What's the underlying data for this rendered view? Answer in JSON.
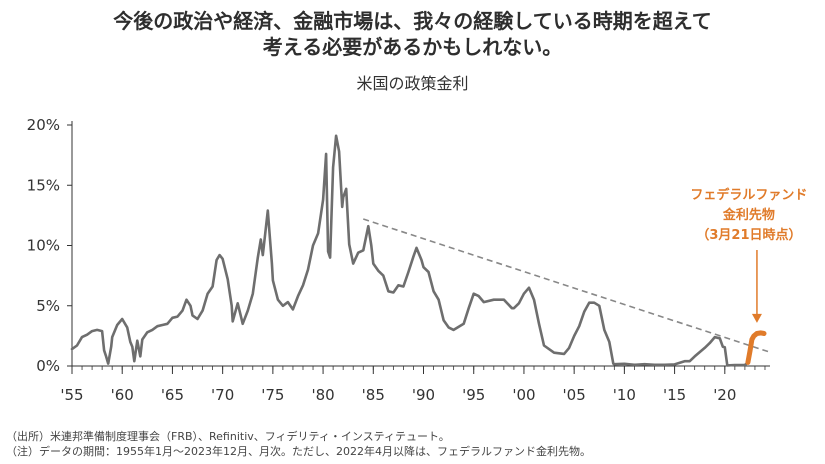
{
  "headline": {
    "line1": "今後の政治や経済、金融市場は、我々の経験している時期を超えて",
    "line2": "考える必要があるかもしれない。"
  },
  "colors": {
    "policy_rate": "#6e6e6e",
    "futures": "#e07b2a",
    "trend": "#888888",
    "axis": "#333333"
  },
  "chart_data": {
    "type": "line",
    "title": "米国の政策金利",
    "ylim": [
      0,
      20
    ],
    "yticks": [
      0,
      5,
      10,
      15,
      20
    ],
    "ytick_labels": [
      "0%",
      "5%",
      "10%",
      "15%",
      "20%"
    ],
    "xlim": [
      1955,
      2024.5
    ],
    "xticks": [
      1955,
      1960,
      1965,
      1970,
      1975,
      1980,
      1985,
      1990,
      1995,
      2000,
      2005,
      2010,
      2015,
      2020
    ],
    "xtick_labels": [
      "'55",
      "'60",
      "'65",
      "'70",
      "'75",
      "'80",
      "'85",
      "'90",
      "'95",
      "'00",
      "'05",
      "'10",
      "'15",
      "'20"
    ],
    "series": [
      {
        "points": [
          [
            1955,
            1.4
          ],
          [
            1955.5,
            1.7
          ],
          [
            1956,
            2.4
          ],
          [
            1956.5,
            2.6
          ],
          [
            1957,
            2.9
          ],
          [
            1957.5,
            3.0
          ],
          [
            1958,
            2.9
          ],
          [
            1958.2,
            1.3
          ],
          [
            1958.4,
            0.8
          ],
          [
            1958.6,
            0.2
          ],
          [
            1958.9,
            1.6
          ],
          [
            1959,
            2.4
          ],
          [
            1959.5,
            3.4
          ],
          [
            1960,
            3.9
          ],
          [
            1960.5,
            3.2
          ],
          [
            1960.8,
            2.0
          ],
          [
            1961,
            1.6
          ],
          [
            1961.2,
            0.4
          ],
          [
            1961.5,
            2.1
          ],
          [
            1961.8,
            0.8
          ],
          [
            1962,
            2.2
          ],
          [
            1962.5,
            2.8
          ],
          [
            1963,
            3.0
          ],
          [
            1963.5,
            3.3
          ],
          [
            1964,
            3.4
          ],
          [
            1964.5,
            3.5
          ],
          [
            1965,
            4.0
          ],
          [
            1965.5,
            4.1
          ],
          [
            1966,
            4.6
          ],
          [
            1966.4,
            5.5
          ],
          [
            1966.8,
            5.0
          ],
          [
            1967,
            4.2
          ],
          [
            1967.5,
            3.9
          ],
          [
            1968,
            4.6
          ],
          [
            1968.5,
            6.0
          ],
          [
            1969,
            6.6
          ],
          [
            1969.4,
            8.8
          ],
          [
            1969.7,
            9.2
          ],
          [
            1970,
            8.9
          ],
          [
            1970.5,
            7.2
          ],
          [
            1970.9,
            5.0
          ],
          [
            1971,
            3.7
          ],
          [
            1971.5,
            5.2
          ],
          [
            1971.8,
            4.2
          ],
          [
            1972,
            3.5
          ],
          [
            1972.5,
            4.6
          ],
          [
            1973,
            6.0
          ],
          [
            1973.5,
            9.0
          ],
          [
            1973.8,
            10.5
          ],
          [
            1974,
            9.2
          ],
          [
            1974.5,
            12.9
          ],
          [
            1974.9,
            8.5
          ],
          [
            1975,
            7.1
          ],
          [
            1975.5,
            5.5
          ],
          [
            1976,
            5.0
          ],
          [
            1976.5,
            5.3
          ],
          [
            1977,
            4.7
          ],
          [
            1977.5,
            5.8
          ],
          [
            1978,
            6.7
          ],
          [
            1978.5,
            8.0
          ],
          [
            1979,
            10.0
          ],
          [
            1979.5,
            11.0
          ],
          [
            1980,
            13.8
          ],
          [
            1980.3,
            17.6
          ],
          [
            1980.5,
            9.5
          ],
          [
            1980.7,
            9.0
          ],
          [
            1981,
            16.5
          ],
          [
            1981.3,
            19.1
          ],
          [
            1981.6,
            17.8
          ],
          [
            1981.9,
            13.2
          ],
          [
            1982,
            14.0
          ],
          [
            1982.3,
            14.7
          ],
          [
            1982.6,
            10.1
          ],
          [
            1983,
            8.5
          ],
          [
            1983.5,
            9.4
          ],
          [
            1984,
            9.6
          ],
          [
            1984.5,
            11.6
          ],
          [
            1984.8,
            10.0
          ],
          [
            1985,
            8.5
          ],
          [
            1985.5,
            7.9
          ],
          [
            1986,
            7.5
          ],
          [
            1986.5,
            6.2
          ],
          [
            1987,
            6.1
          ],
          [
            1987.5,
            6.7
          ],
          [
            1988,
            6.6
          ],
          [
            1988.5,
            7.8
          ],
          [
            1989,
            9.1
          ],
          [
            1989.3,
            9.8
          ],
          [
            1989.8,
            8.8
          ],
          [
            1990,
            8.2
          ],
          [
            1990.5,
            7.8
          ],
          [
            1991,
            6.2
          ],
          [
            1991.5,
            5.5
          ],
          [
            1992,
            3.8
          ],
          [
            1992.5,
            3.2
          ],
          [
            1993,
            3.0
          ],
          [
            1994,
            3.5
          ],
          [
            1994.5,
            4.8
          ],
          [
            1995,
            6.0
          ],
          [
            1995.5,
            5.8
          ],
          [
            1996,
            5.3
          ],
          [
            1997,
            5.5
          ],
          [
            1998,
            5.5
          ],
          [
            1998.8,
            4.8
          ],
          [
            1999,
            4.8
          ],
          [
            1999.5,
            5.2
          ],
          [
            2000,
            6.0
          ],
          [
            2000.5,
            6.5
          ],
          [
            2001,
            5.5
          ],
          [
            2001.5,
            3.5
          ],
          [
            2002,
            1.7
          ],
          [
            2003,
            1.1
          ],
          [
            2004,
            1.0
          ],
          [
            2004.5,
            1.5
          ],
          [
            2005,
            2.5
          ],
          [
            2005.5,
            3.3
          ],
          [
            2006,
            4.5
          ],
          [
            2006.5,
            5.25
          ],
          [
            2007,
            5.25
          ],
          [
            2007.5,
            5.0
          ],
          [
            2008,
            3.0
          ],
          [
            2008.5,
            2.0
          ],
          [
            2008.9,
            0.2
          ],
          [
            2009,
            0.15
          ],
          [
            2010,
            0.18
          ],
          [
            2011,
            0.1
          ],
          [
            2012,
            0.15
          ],
          [
            2013,
            0.1
          ],
          [
            2014,
            0.1
          ],
          [
            2015,
            0.13
          ],
          [
            2016,
            0.4
          ],
          [
            2016.5,
            0.4
          ],
          [
            2017,
            0.8
          ],
          [
            2017.5,
            1.15
          ],
          [
            2018,
            1.5
          ],
          [
            2018.5,
            1.9
          ],
          [
            2019,
            2.4
          ],
          [
            2019.5,
            2.3
          ],
          [
            2019.8,
            1.6
          ],
          [
            2020,
            1.55
          ],
          [
            2020.25,
            0.05
          ],
          [
            2021,
            0.08
          ],
          [
            2022,
            0.08
          ],
          [
            2022.3,
            0.3
          ]
        ]
      },
      {
        "points": [
          [
            2022.3,
            0.3
          ],
          [
            2022.5,
            1.2
          ],
          [
            2022.7,
            2.2
          ],
          [
            2022.9,
            2.5
          ],
          [
            2023.2,
            2.7
          ],
          [
            2023.6,
            2.75
          ],
          [
            2023.9,
            2.7
          ]
        ]
      }
    ],
    "trendline": {
      "points": [
        [
          1984,
          12.2
        ],
        [
          2024.3,
          1.2
        ]
      ]
    },
    "annotation": {
      "lines": [
        "フェデラルファンド",
        "金利先物",
        "（3月21日時点）"
      ],
      "arrow_tip": [
        2023.2,
        3.5
      ]
    }
  },
  "notes": {
    "source": "（出所）米連邦準備制度理事会（FRB）、Refinitiv、フィデリティ・インスティテュート。",
    "period": "（注）データの期間：1955年1月～2023年12月、月次。ただし、2022年4月以降は、フェデラルファンド金利先物。"
  }
}
